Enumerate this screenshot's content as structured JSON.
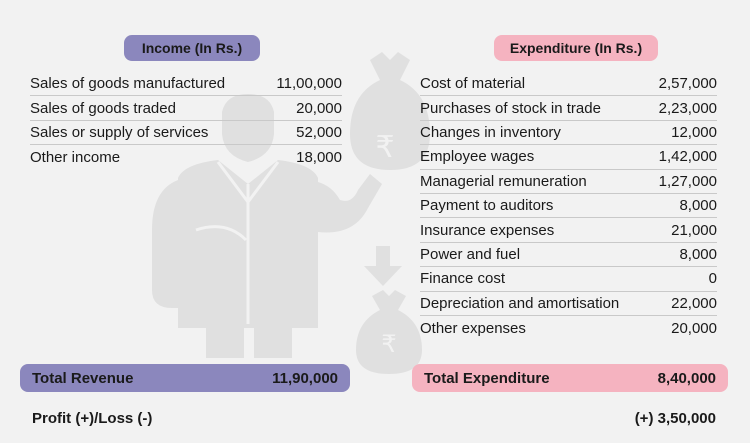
{
  "income": {
    "header": "Income (In Rs.)",
    "rows": [
      {
        "label": "Sales of goods manufactured",
        "value": "11,00,000"
      },
      {
        "label": "Sales of goods traded",
        "value": "20,000"
      },
      {
        "label": "Sales or supply of services",
        "value": "52,000"
      },
      {
        "label": "Other income",
        "value": "18,000"
      }
    ],
    "total_label": "Total Revenue",
    "total_value": "11,90,000"
  },
  "expenditure": {
    "header": "Expenditure (In Rs.)",
    "rows": [
      {
        "label": "Cost of material",
        "value": "2,57,000"
      },
      {
        "label": "Purchases of stock in trade",
        "value": "2,23,000"
      },
      {
        "label": "Changes in inventory",
        "value": "12,000"
      },
      {
        "label": "Employee wages",
        "value": "1,42,000"
      },
      {
        "label": "Managerial remuneration",
        "value": "1,27,000"
      },
      {
        "label": "Payment to auditors",
        "value": "8,000"
      },
      {
        "label": "Insurance expenses",
        "value": "21,000"
      },
      {
        "label": "Power and fuel",
        "value": "8,000"
      },
      {
        "label": "Finance cost",
        "value": "0"
      },
      {
        "label": "Depreciation and amortisation",
        "value": "22,000"
      },
      {
        "label": "Other expenses",
        "value": "20,000"
      }
    ],
    "total_label": "Total Expenditure",
    "total_value": "8,40,000"
  },
  "profit": {
    "label": "Profit (+)/Loss (-)",
    "value": "(+) 3,50,000"
  },
  "colors": {
    "income_accent": "#8b87bd",
    "expenditure_accent": "#f5b3c0",
    "illustration": "#e0e0e0"
  }
}
